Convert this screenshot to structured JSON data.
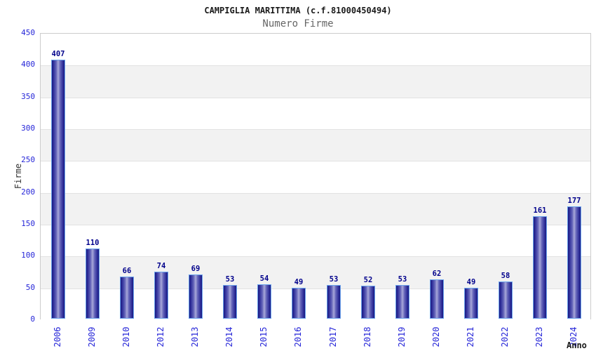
{
  "chart_data": {
    "type": "bar",
    "title": "CAMPIGLIA MARITTIMA (c.f.81000450494)",
    "subtitle": "Numero Firme",
    "xlabel": "Anno",
    "ylabel": "Firme",
    "categories": [
      "2006",
      "2009",
      "2010",
      "2012",
      "2013",
      "2014",
      "2015",
      "2016",
      "2017",
      "2018",
      "2019",
      "2020",
      "2021",
      "2022",
      "2023",
      "2024"
    ],
    "values": [
      407,
      110,
      66,
      74,
      69,
      53,
      54,
      49,
      53,
      52,
      53,
      62,
      49,
      58,
      161,
      177
    ],
    "ylim": [
      0,
      450
    ],
    "ytick_step": 50,
    "grid": "horizontal-bands-alternating",
    "legend": "none"
  },
  "colors": {
    "tick_label": "#2626d8",
    "value_label": "#00008b",
    "bar_outline": "#6ba3ec",
    "bar_edge": "#191980",
    "bar_center": "#a9a9d9",
    "band_gray": "#f2f2f2",
    "band_white": "#ffffff",
    "gridline": "#e2e2e2",
    "plot_border": "#cccccc",
    "title_color": "#1a1a1a",
    "subtitle_color": "#666666",
    "axis_title_color": "#333333"
  }
}
